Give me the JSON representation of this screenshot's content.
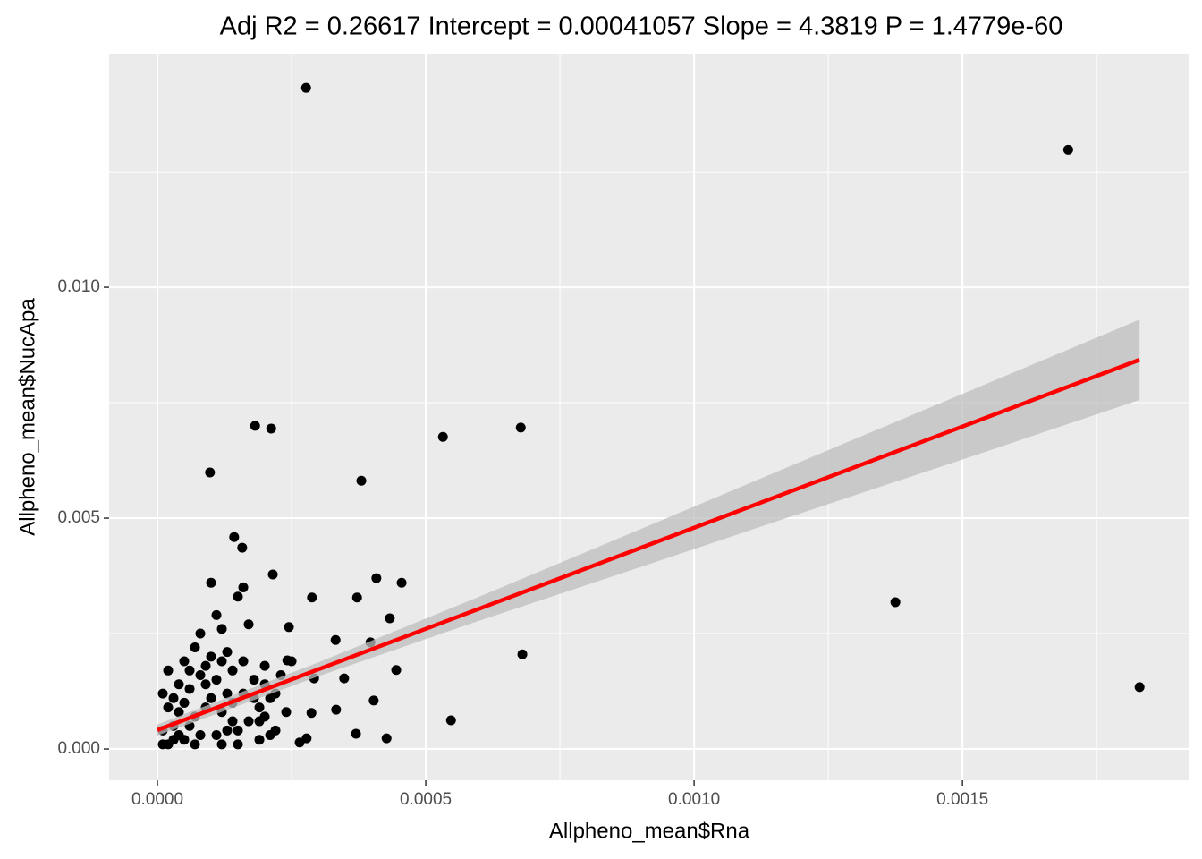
{
  "chart_data": {
    "type": "scatter",
    "title": "Adj R2 =  0.26617 Intercept = 0.00041057  Slope = 4.3819  P = 1.4779e-60",
    "x_label": "Allpheno_mean$Rna",
    "y_label": "Allpheno_mean$NucApa",
    "xlim": [
      -9e-05,
      0.001923
    ],
    "ylim": [
      -0.000678,
      0.01506
    ],
    "xticks": [
      {
        "value": 0,
        "label": "0.0000"
      },
      {
        "value": 0.0005,
        "label": "0.0005"
      },
      {
        "value": 0.001,
        "label": "0.0010"
      },
      {
        "value": 0.0015,
        "label": "0.0015"
      }
    ],
    "yticks": [
      {
        "value": 0,
        "label": "0.000"
      },
      {
        "value": 0.005,
        "label": "0.005"
      },
      {
        "value": 0.01,
        "label": "0.010"
      }
    ],
    "x_minor_ticks": [
      0.00025,
      0.00075,
      0.00125,
      0.00175
    ],
    "y_minor_ticks": [
      0.0025,
      0.0075,
      0.0125
    ],
    "grid": true,
    "color": "#000000",
    "x": [
      0.000277,
      0.001697,
      0.000182,
      0.000212,
      0.000532,
      0.000677,
      9.8e-05,
      0.00038,
      0.000143,
      0.000158,
      0.000215,
      0.000408,
      0.000455,
      0.000288,
      0.000372,
      0.001375,
      0.000433,
      0.000245,
      0.000332,
      0.000397,
      0.00068,
      0.000445,
      0.00183,
      0.000403,
      0.000547,
      0.000427,
      0.00037,
      0.000348,
      0.000292,
      0.000287,
      0.000278,
      0.000265,
      0.000242,
      0.000333,
      2e-05,
      3e-05,
      1e-05,
      4e-05,
      5e-05,
      2e-05,
      6e-05,
      7e-05,
      8e-05,
      9e-05,
      0.0001,
      0.00011,
      0.00012,
      0.00013,
      0.00014,
      0.00015,
      0.00016,
      0.00017,
      0.00018,
      0.00019,
      0.0002,
      0.00021,
      0.00022,
      0.00023,
      0.00024,
      3e-05,
      4e-05,
      5e-05,
      6e-05,
      7e-05,
      8e-05,
      9e-05,
      0.0001,
      0.00011,
      0.00012,
      0.00013,
      0.00014,
      0.00015,
      0.00016,
      0.00017,
      0.00019,
      0.0002,
      0.00021,
      2e-05,
      1e-05,
      3e-05,
      5e-05,
      6e-05,
      8e-05,
      9e-05,
      0.0001,
      0.00011,
      0.00012,
      0.00013,
      0.00014,
      0.00016,
      0.00018,
      0.0002,
      0.00022,
      0.00025,
      7e-05,
      4e-05,
      1e-05,
      0.00012,
      0.00015,
      0.00019
    ],
    "y": [
      0.01432,
      0.01298,
      0.007,
      0.00694,
      0.00676,
      0.00696,
      0.00599,
      0.00581,
      0.00459,
      0.00436,
      0.00378,
      0.0037,
      0.0036,
      0.00328,
      0.00328,
      0.00318,
      0.00283,
      0.00264,
      0.00236,
      0.00231,
      0.00205,
      0.00171,
      0.00134,
      0.00105,
      0.00062,
      0.00023,
      0.00033,
      0.00153,
      0.00153,
      0.00078,
      0.00023,
      0.00014,
      0.00192,
      0.00085,
      0.0017,
      0.0011,
      0.0004,
      0.0008,
      0.0002,
      0.0001,
      0.0013,
      0.0022,
      0.0016,
      0.0009,
      0.0036,
      0.0029,
      0.0019,
      0.0012,
      0.0006,
      0.0033,
      0.0035,
      0.0027,
      0.0015,
      0.0009,
      0.0018,
      0.0011,
      0.0004,
      0.0016,
      0.0008,
      0.0002,
      0.0014,
      0.0019,
      0.0005,
      0.0001,
      0.0025,
      0.0018,
      0.0011,
      0.0003,
      0.0008,
      0.0021,
      0.0017,
      0.0004,
      0.0012,
      0.0006,
      0.0002,
      0.0007,
      0.0003,
      0.0009,
      0.0012,
      0.0005,
      0.001,
      0.0017,
      0.0003,
      0.0014,
      0.002,
      0.0015,
      0.0026,
      0.0004,
      0.001,
      0.0019,
      0.0011,
      0.0014,
      0.0012,
      0.0019,
      0.0007,
      0.0003,
      0.0001,
      0.0001,
      0.0001,
      0.0006
    ],
    "fit": {
      "intercept": 0.00041057,
      "slope": 4.3819,
      "x_range": [
        0,
        0.00183
      ],
      "color": "#ff0000"
    },
    "band": {
      "x": [
        0,
        0.0003,
        0.0006,
        0.0009,
        0.0012,
        0.0015,
        0.00183
      ],
      "lower": [
        0.00029,
        0.001575,
        0.00278,
        0.00394,
        0.00511,
        0.00627,
        0.00756
      ],
      "upper": [
        0.00053,
        0.001875,
        0.0033,
        0.00476,
        0.00623,
        0.00769,
        0.0093
      ],
      "color": "#bdbdbd"
    }
  }
}
